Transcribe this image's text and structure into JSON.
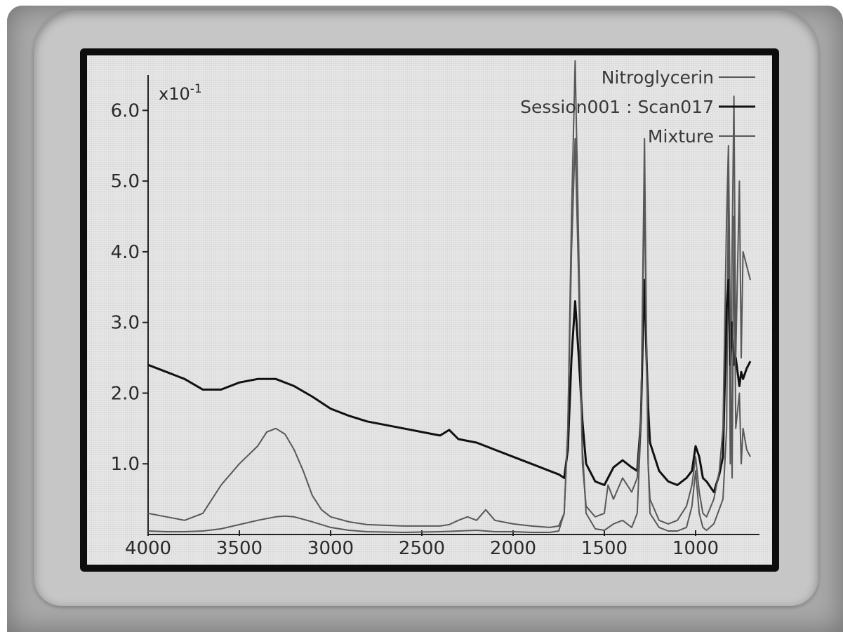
{
  "chart_data": {
    "type": "line",
    "title": "",
    "xlabel": "",
    "ylabel": "",
    "y_multiplier_base": "x10",
    "y_multiplier_exp": "-1",
    "xlim": [
      4000,
      650
    ],
    "ylim": [
      0,
      6.5
    ],
    "x_reversed": true,
    "grid": false,
    "legend_position": "top-right",
    "x_ticks": [
      {
        "value": 4000,
        "label": "4000"
      },
      {
        "value": 3500,
        "label": "3500"
      },
      {
        "value": 3000,
        "label": "3000"
      },
      {
        "value": 2500,
        "label": "2500"
      },
      {
        "value": 2000,
        "label": "2000"
      },
      {
        "value": 1500,
        "label": "1500"
      },
      {
        "value": 1000,
        "label": "1000"
      }
    ],
    "y_ticks": [
      {
        "value": 1.0,
        "label": "1.0"
      },
      {
        "value": 2.0,
        "label": "2.0"
      },
      {
        "value": 3.0,
        "label": "3.0"
      },
      {
        "value": 4.0,
        "label": "4.0"
      },
      {
        "value": 5.0,
        "label": "5.0"
      },
      {
        "value": 6.0,
        "label": "6.0"
      }
    ],
    "series": [
      {
        "name": "Nitroglycerin",
        "color": "#5a5a5a",
        "width": 2,
        "x": [
          4000,
          3900,
          3800,
          3700,
          3600,
          3500,
          3400,
          3300,
          3250,
          3200,
          3100,
          3000,
          2900,
          2800,
          2600,
          2400,
          2300,
          2200,
          2150,
          2100,
          2000,
          1900,
          1800,
          1750,
          1720,
          1700,
          1680,
          1660,
          1640,
          1620,
          1600,
          1550,
          1500,
          1450,
          1400,
          1350,
          1320,
          1300,
          1290,
          1280,
          1270,
          1260,
          1250,
          1200,
          1150,
          1100,
          1050,
          1020,
          1000,
          980,
          960,
          940,
          900,
          850,
          830,
          820,
          810,
          800,
          790,
          780,
          760,
          750,
          740,
          720,
          700
        ],
        "y": [
          0.05,
          0.04,
          0.04,
          0.05,
          0.08,
          0.14,
          0.2,
          0.25,
          0.26,
          0.25,
          0.18,
          0.1,
          0.06,
          0.04,
          0.03,
          0.04,
          0.05,
          0.06,
          0.05,
          0.04,
          0.04,
          0.03,
          0.03,
          0.05,
          0.3,
          1.5,
          4.5,
          6.7,
          4.0,
          1.2,
          0.3,
          0.08,
          0.06,
          0.15,
          0.2,
          0.1,
          0.3,
          1.5,
          3.5,
          5.6,
          3.0,
          1.0,
          0.3,
          0.1,
          0.05,
          0.05,
          0.1,
          0.4,
          0.9,
          0.3,
          0.1,
          0.06,
          0.15,
          0.5,
          1.5,
          5.0,
          1.0,
          4.0,
          6.2,
          2.5,
          5.0,
          2.5,
          4.0,
          3.8,
          3.6
        ]
      },
      {
        "name": "Session001 : Scan017",
        "color": "#111111",
        "width": 3,
        "x": [
          4000,
          3900,
          3800,
          3700,
          3600,
          3500,
          3400,
          3300,
          3200,
          3100,
          3000,
          2900,
          2800,
          2700,
          2600,
          2500,
          2400,
          2350,
          2300,
          2200,
          2100,
          2000,
          1900,
          1800,
          1750,
          1720,
          1700,
          1680,
          1660,
          1640,
          1620,
          1600,
          1550,
          1500,
          1450,
          1400,
          1350,
          1320,
          1300,
          1290,
          1280,
          1270,
          1260,
          1250,
          1200,
          1150,
          1100,
          1050,
          1020,
          1000,
          980,
          960,
          940,
          900,
          870,
          850,
          830,
          820,
          810,
          800,
          790,
          780,
          760,
          750,
          740,
          720,
          700
        ],
        "y": [
          2.4,
          2.3,
          2.2,
          2.05,
          2.05,
          2.15,
          2.2,
          2.2,
          2.1,
          1.95,
          1.78,
          1.68,
          1.6,
          1.55,
          1.5,
          1.45,
          1.4,
          1.48,
          1.35,
          1.3,
          1.2,
          1.1,
          1.0,
          0.9,
          0.85,
          0.8,
          1.2,
          2.5,
          3.3,
          2.5,
          1.6,
          1.0,
          0.75,
          0.7,
          0.95,
          1.05,
          0.95,
          0.9,
          1.6,
          2.7,
          3.6,
          2.6,
          1.8,
          1.3,
          0.9,
          0.75,
          0.7,
          0.8,
          0.9,
          1.25,
          1.1,
          0.8,
          0.75,
          0.6,
          0.85,
          1.1,
          3.2,
          3.6,
          2.4,
          3.0,
          2.4,
          2.5,
          2.1,
          2.3,
          2.2,
          2.35,
          2.45
        ]
      },
      {
        "name": "Mixture",
        "color": "#5a5a5a",
        "width": 2,
        "x": [
          4000,
          3900,
          3800,
          3700,
          3600,
          3500,
          3400,
          3350,
          3300,
          3250,
          3200,
          3150,
          3100,
          3050,
          3000,
          2900,
          2800,
          2600,
          2500,
          2400,
          2350,
          2300,
          2250,
          2200,
          2150,
          2100,
          2000,
          1900,
          1800,
          1750,
          1720,
          1700,
          1680,
          1660,
          1640,
          1620,
          1600,
          1550,
          1500,
          1480,
          1450,
          1400,
          1350,
          1320,
          1300,
          1290,
          1280,
          1270,
          1260,
          1250,
          1200,
          1150,
          1100,
          1050,
          1020,
          1000,
          980,
          960,
          940,
          900,
          870,
          850,
          830,
          820,
          810,
          800,
          790,
          780,
          760,
          750,
          740,
          720,
          700
        ],
        "y": [
          0.3,
          0.25,
          0.2,
          0.3,
          0.7,
          1.0,
          1.25,
          1.45,
          1.5,
          1.42,
          1.2,
          0.9,
          0.55,
          0.35,
          0.25,
          0.18,
          0.14,
          0.12,
          0.12,
          0.12,
          0.14,
          0.2,
          0.25,
          0.2,
          0.35,
          0.2,
          0.15,
          0.12,
          0.1,
          0.12,
          0.3,
          1.5,
          4.0,
          5.6,
          3.5,
          1.0,
          0.4,
          0.25,
          0.3,
          0.7,
          0.5,
          0.8,
          0.6,
          0.8,
          1.6,
          3.2,
          4.9,
          2.8,
          1.0,
          0.5,
          0.2,
          0.15,
          0.2,
          0.4,
          0.7,
          1.1,
          0.6,
          0.3,
          0.25,
          0.5,
          0.9,
          1.5,
          4.5,
          5.5,
          3.0,
          0.8,
          4.5,
          1.5,
          2.0,
          1.0,
          1.5,
          1.2,
          1.1
        ]
      }
    ]
  }
}
